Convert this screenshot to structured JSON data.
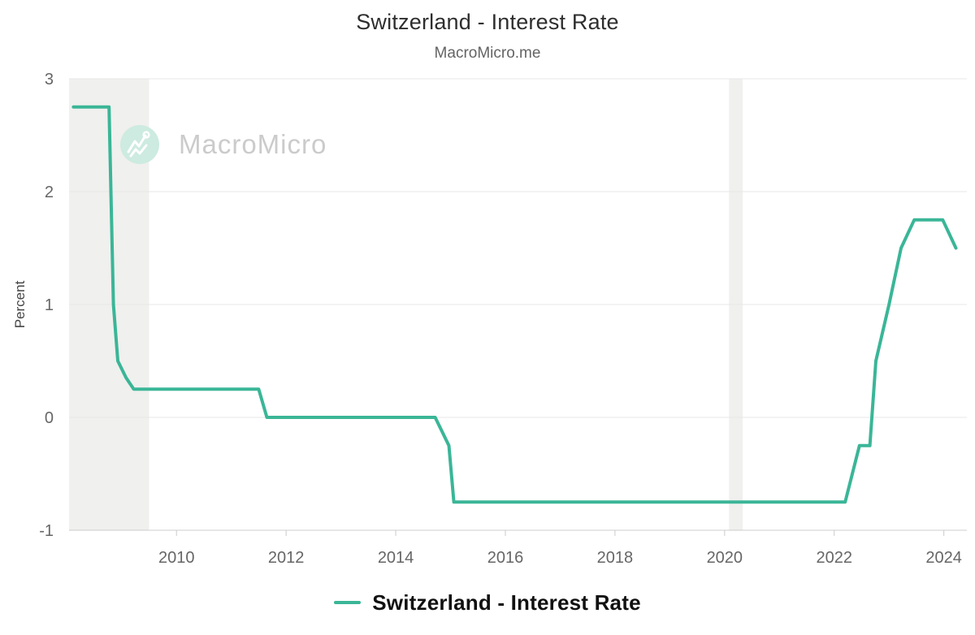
{
  "header": {
    "title": "Switzerland - Interest Rate",
    "subtitle": "MacroMicro.me"
  },
  "watermark": {
    "text": "MacroMicro",
    "icon": "macromicro-logo",
    "circle_color": "#cdebe0",
    "glyph_color": "#ffffff",
    "text_color": "#cbcbcb"
  },
  "legend": {
    "label": "Switzerland - Interest Rate",
    "color": "#3ab697"
  },
  "colors": {
    "line": "#3ab697",
    "recession_band": "#f0f0ee",
    "gridline": "#e7e7e7",
    "axis_line": "#cccccc",
    "tick_label": "#666666",
    "axis_title": "#444444"
  },
  "chart_data": {
    "type": "line",
    "title": "Switzerland - Interest Rate",
    "subtitle": "MacroMicro.me",
    "xlabel": "",
    "ylabel": "Percent",
    "xlim": [
      2008.04,
      2024.42
    ],
    "ylim": [
      -1,
      3
    ],
    "x_ticks": [
      2010,
      2012,
      2014,
      2016,
      2018,
      2020,
      2022,
      2024
    ],
    "y_ticks": [
      3,
      2,
      1,
      0,
      -1
    ],
    "grid": "horizontal",
    "legend_position": "bottom",
    "recession_bands": [
      [
        2008.04,
        2009.5
      ],
      [
        2020.08,
        2020.33
      ]
    ],
    "series": [
      {
        "name": "Switzerland - Interest Rate",
        "color": "#3ab697",
        "points": [
          [
            2008.12,
            2.75
          ],
          [
            2008.77,
            2.75
          ],
          [
            2008.85,
            1.0
          ],
          [
            2008.93,
            0.5
          ],
          [
            2009.08,
            0.35
          ],
          [
            2009.22,
            0.25
          ],
          [
            2011.5,
            0.25
          ],
          [
            2011.65,
            0.0
          ],
          [
            2014.72,
            0.0
          ],
          [
            2014.97,
            -0.25
          ],
          [
            2015.06,
            -0.75
          ],
          [
            2022.2,
            -0.75
          ],
          [
            2022.46,
            -0.25
          ],
          [
            2022.65,
            -0.25
          ],
          [
            2022.76,
            0.5
          ],
          [
            2023.0,
            1.0
          ],
          [
            2023.22,
            1.5
          ],
          [
            2023.46,
            1.75
          ],
          [
            2023.98,
            1.75
          ],
          [
            2024.22,
            1.5
          ]
        ]
      }
    ]
  }
}
